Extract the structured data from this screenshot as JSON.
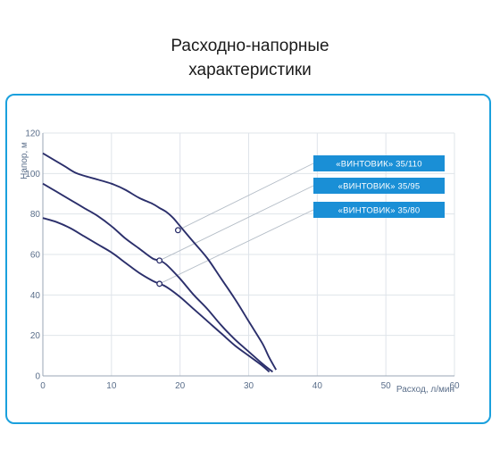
{
  "title": {
    "line1": "Расходно-напорные",
    "line2": "характеристики"
  },
  "chart_data": {
    "type": "line",
    "xlabel": "Расход, л/мин",
    "ylabel": "Напор, м",
    "xlim": [
      0,
      60
    ],
    "ylim": [
      0,
      120
    ],
    "xticks": [
      0,
      10,
      20,
      30,
      40,
      50,
      60
    ],
    "yticks": [
      0,
      20,
      40,
      60,
      80,
      100,
      120
    ],
    "grid": true,
    "line_color": "#2b2f6b",
    "grid_color": "#dfe4ea",
    "legend_color": "#1a8fd6",
    "series": [
      {
        "name": "«ВИНТОВИК» 35/110",
        "x": [
          0,
          3,
          5,
          8,
          10,
          12,
          14,
          16,
          17,
          18,
          19,
          20,
          22,
          24,
          26,
          28,
          30,
          32,
          33,
          34
        ],
        "y": [
          110,
          104,
          100,
          97,
          95,
          92,
          88,
          85,
          83,
          81,
          78,
          74,
          66,
          58,
          48,
          38,
          27,
          16,
          9,
          3
        ],
        "marker_x": 19.7,
        "marker_y": 72
      },
      {
        "name": "«ВИНТОВИК» 35/95",
        "x": [
          0,
          2,
          4,
          6,
          8,
          10,
          12,
          14,
          16,
          17,
          18,
          20,
          22,
          24,
          26,
          28,
          30,
          32,
          33.5
        ],
        "y": [
          95,
          91,
          87,
          83,
          79,
          74,
          68,
          63,
          58,
          57,
          55,
          48,
          40,
          33,
          25,
          18,
          12,
          6,
          2
        ],
        "marker_x": 17,
        "marker_y": 57
      },
      {
        "name": "«ВИНТОВИК» 35/80",
        "x": [
          0,
          2,
          4,
          6,
          8,
          10,
          12,
          14,
          16,
          17,
          18,
          20,
          22,
          24,
          26,
          28,
          30,
          32,
          33
        ],
        "y": [
          78,
          76,
          73,
          69,
          65,
          61,
          56,
          51,
          47,
          45.5,
          44,
          39,
          33,
          27,
          21,
          15,
          10,
          5,
          2
        ],
        "marker_x": 17,
        "marker_y": 45.5
      }
    ]
  }
}
